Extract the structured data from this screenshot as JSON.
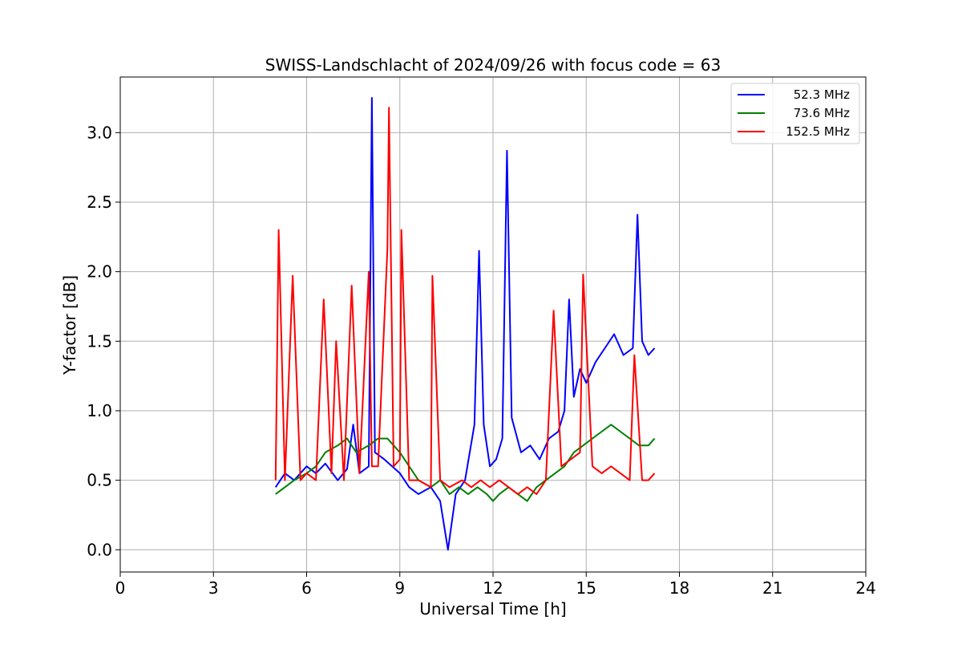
{
  "chart_data": {
    "type": "line",
    "title": "SWISS-Landschlacht of 2024/09/26 with focus code = 63",
    "xlabel": "Universal Time [h]",
    "ylabel": "Y-factor [dB]",
    "xlim": [
      0,
      24
    ],
    "ylim": [
      -0.16,
      3.4
    ],
    "xticks": [
      0,
      3,
      6,
      9,
      12,
      15,
      18,
      21,
      24
    ],
    "xtick_labels": [
      "0",
      "3",
      "6",
      "9",
      "12",
      "15",
      "18",
      "21",
      "24"
    ],
    "yticks": [
      0.0,
      0.5,
      1.0,
      1.5,
      2.0,
      2.5,
      3.0
    ],
    "ytick_labels": [
      "0.0",
      "0.5",
      "1.0",
      "1.5",
      "2.0",
      "2.5",
      "3.0"
    ],
    "grid": true,
    "legend_position": "top-right",
    "series": [
      {
        "name": "52.3 MHz",
        "color": "#0000ff",
        "x": [
          5.0,
          5.3,
          5.6,
          6.0,
          6.3,
          6.6,
          7.0,
          7.3,
          7.5,
          7.7,
          8.0,
          8.1,
          8.2,
          8.5,
          9.0,
          9.3,
          9.6,
          10.0,
          10.3,
          10.55,
          10.8,
          11.1,
          11.4,
          11.55,
          11.7,
          11.9,
          12.1,
          12.3,
          12.45,
          12.6,
          12.9,
          13.2,
          13.5,
          13.8,
          14.1,
          14.3,
          14.45,
          14.6,
          14.8,
          15.0,
          15.3,
          15.6,
          15.9,
          16.2,
          16.5,
          16.65,
          16.8,
          17.0,
          17.2
        ],
        "y": [
          0.45,
          0.55,
          0.5,
          0.6,
          0.55,
          0.62,
          0.5,
          0.58,
          0.9,
          0.55,
          0.6,
          3.25,
          0.7,
          0.65,
          0.55,
          0.45,
          0.4,
          0.45,
          0.35,
          0.0,
          0.4,
          0.5,
          0.9,
          2.15,
          0.9,
          0.6,
          0.65,
          0.8,
          2.87,
          0.95,
          0.7,
          0.75,
          0.65,
          0.8,
          0.85,
          1.0,
          1.8,
          1.1,
          1.3,
          1.2,
          1.35,
          1.45,
          1.55,
          1.4,
          1.45,
          2.41,
          1.5,
          1.4,
          1.45
        ]
      },
      {
        "name": "73.6 MHz",
        "color": "#008000",
        "x": [
          5.0,
          5.3,
          5.6,
          6.0,
          6.3,
          6.6,
          7.0,
          7.3,
          7.6,
          8.0,
          8.3,
          8.6,
          9.0,
          9.3,
          9.6,
          10.0,
          10.3,
          10.6,
          10.9,
          11.2,
          11.5,
          11.8,
          12.0,
          12.2,
          12.5,
          12.8,
          13.1,
          13.4,
          13.7,
          14.0,
          14.3,
          14.6,
          14.9,
          15.2,
          15.5,
          15.8,
          16.1,
          16.4,
          16.7,
          17.0,
          17.2
        ],
        "y": [
          0.4,
          0.45,
          0.5,
          0.55,
          0.6,
          0.7,
          0.75,
          0.8,
          0.7,
          0.75,
          0.8,
          0.8,
          0.7,
          0.6,
          0.5,
          0.45,
          0.5,
          0.4,
          0.45,
          0.4,
          0.45,
          0.4,
          0.35,
          0.4,
          0.45,
          0.4,
          0.35,
          0.45,
          0.5,
          0.55,
          0.6,
          0.7,
          0.75,
          0.8,
          0.85,
          0.9,
          0.85,
          0.8,
          0.75,
          0.75,
          0.8
        ]
      },
      {
        "name": "152.5 MHz",
        "color": "#ff0000",
        "x": [
          5.0,
          5.1,
          5.3,
          5.55,
          5.8,
          6.0,
          6.3,
          6.55,
          6.8,
          6.95,
          7.2,
          7.45,
          7.7,
          8.0,
          8.1,
          8.3,
          8.6,
          8.65,
          8.8,
          9.0,
          9.05,
          9.3,
          9.6,
          10.0,
          10.05,
          10.3,
          10.6,
          11.0,
          11.3,
          11.6,
          11.9,
          12.2,
          12.5,
          12.8,
          13.1,
          13.4,
          13.7,
          13.95,
          14.2,
          14.5,
          14.8,
          14.9,
          15.2,
          15.5,
          15.8,
          16.1,
          16.4,
          16.55,
          16.8,
          17.0,
          17.2
        ],
        "y": [
          0.5,
          2.3,
          0.5,
          1.97,
          0.5,
          0.55,
          0.5,
          1.8,
          0.55,
          1.5,
          0.5,
          1.9,
          0.55,
          2.0,
          0.6,
          0.6,
          2.17,
          3.18,
          0.6,
          0.65,
          2.3,
          0.5,
          0.5,
          0.45,
          1.97,
          0.5,
          0.45,
          0.5,
          0.45,
          0.5,
          0.45,
          0.5,
          0.45,
          0.4,
          0.45,
          0.4,
          0.5,
          1.72,
          0.6,
          0.65,
          0.7,
          1.98,
          0.6,
          0.55,
          0.6,
          0.55,
          0.5,
          1.4,
          0.5,
          0.5,
          0.55
        ]
      }
    ]
  }
}
